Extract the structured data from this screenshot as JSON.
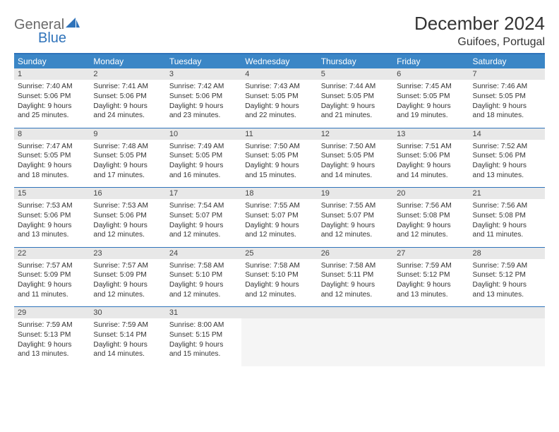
{
  "brand": {
    "part1": "General",
    "part2": "Blue"
  },
  "title": "December 2024",
  "location": "Guifoes, Portugal",
  "colors": {
    "header_bg": "#3b86c6",
    "header_text": "#ffffff",
    "border_accent": "#2f73ba",
    "daynum_bg": "#e8e8e8",
    "body_text": "#333333",
    "logo_gray": "#6a6a6a",
    "logo_blue": "#2f73ba"
  },
  "weekdays": [
    "Sunday",
    "Monday",
    "Tuesday",
    "Wednesday",
    "Thursday",
    "Friday",
    "Saturday"
  ],
  "weeks": [
    [
      {
        "num": "1",
        "sunrise": "Sunrise: 7:40 AM",
        "sunset": "Sunset: 5:06 PM",
        "day1": "Daylight: 9 hours",
        "day2": "and 25 minutes."
      },
      {
        "num": "2",
        "sunrise": "Sunrise: 7:41 AM",
        "sunset": "Sunset: 5:06 PM",
        "day1": "Daylight: 9 hours",
        "day2": "and 24 minutes."
      },
      {
        "num": "3",
        "sunrise": "Sunrise: 7:42 AM",
        "sunset": "Sunset: 5:06 PM",
        "day1": "Daylight: 9 hours",
        "day2": "and 23 minutes."
      },
      {
        "num": "4",
        "sunrise": "Sunrise: 7:43 AM",
        "sunset": "Sunset: 5:05 PM",
        "day1": "Daylight: 9 hours",
        "day2": "and 22 minutes."
      },
      {
        "num": "5",
        "sunrise": "Sunrise: 7:44 AM",
        "sunset": "Sunset: 5:05 PM",
        "day1": "Daylight: 9 hours",
        "day2": "and 21 minutes."
      },
      {
        "num": "6",
        "sunrise": "Sunrise: 7:45 AM",
        "sunset": "Sunset: 5:05 PM",
        "day1": "Daylight: 9 hours",
        "day2": "and 19 minutes."
      },
      {
        "num": "7",
        "sunrise": "Sunrise: 7:46 AM",
        "sunset": "Sunset: 5:05 PM",
        "day1": "Daylight: 9 hours",
        "day2": "and 18 minutes."
      }
    ],
    [
      {
        "num": "8",
        "sunrise": "Sunrise: 7:47 AM",
        "sunset": "Sunset: 5:05 PM",
        "day1": "Daylight: 9 hours",
        "day2": "and 18 minutes."
      },
      {
        "num": "9",
        "sunrise": "Sunrise: 7:48 AM",
        "sunset": "Sunset: 5:05 PM",
        "day1": "Daylight: 9 hours",
        "day2": "and 17 minutes."
      },
      {
        "num": "10",
        "sunrise": "Sunrise: 7:49 AM",
        "sunset": "Sunset: 5:05 PM",
        "day1": "Daylight: 9 hours",
        "day2": "and 16 minutes."
      },
      {
        "num": "11",
        "sunrise": "Sunrise: 7:50 AM",
        "sunset": "Sunset: 5:05 PM",
        "day1": "Daylight: 9 hours",
        "day2": "and 15 minutes."
      },
      {
        "num": "12",
        "sunrise": "Sunrise: 7:50 AM",
        "sunset": "Sunset: 5:05 PM",
        "day1": "Daylight: 9 hours",
        "day2": "and 14 minutes."
      },
      {
        "num": "13",
        "sunrise": "Sunrise: 7:51 AM",
        "sunset": "Sunset: 5:06 PM",
        "day1": "Daylight: 9 hours",
        "day2": "and 14 minutes."
      },
      {
        "num": "14",
        "sunrise": "Sunrise: 7:52 AM",
        "sunset": "Sunset: 5:06 PM",
        "day1": "Daylight: 9 hours",
        "day2": "and 13 minutes."
      }
    ],
    [
      {
        "num": "15",
        "sunrise": "Sunrise: 7:53 AM",
        "sunset": "Sunset: 5:06 PM",
        "day1": "Daylight: 9 hours",
        "day2": "and 13 minutes."
      },
      {
        "num": "16",
        "sunrise": "Sunrise: 7:53 AM",
        "sunset": "Sunset: 5:06 PM",
        "day1": "Daylight: 9 hours",
        "day2": "and 12 minutes."
      },
      {
        "num": "17",
        "sunrise": "Sunrise: 7:54 AM",
        "sunset": "Sunset: 5:07 PM",
        "day1": "Daylight: 9 hours",
        "day2": "and 12 minutes."
      },
      {
        "num": "18",
        "sunrise": "Sunrise: 7:55 AM",
        "sunset": "Sunset: 5:07 PM",
        "day1": "Daylight: 9 hours",
        "day2": "and 12 minutes."
      },
      {
        "num": "19",
        "sunrise": "Sunrise: 7:55 AM",
        "sunset": "Sunset: 5:07 PM",
        "day1": "Daylight: 9 hours",
        "day2": "and 12 minutes."
      },
      {
        "num": "20",
        "sunrise": "Sunrise: 7:56 AM",
        "sunset": "Sunset: 5:08 PM",
        "day1": "Daylight: 9 hours",
        "day2": "and 12 minutes."
      },
      {
        "num": "21",
        "sunrise": "Sunrise: 7:56 AM",
        "sunset": "Sunset: 5:08 PM",
        "day1": "Daylight: 9 hours",
        "day2": "and 11 minutes."
      }
    ],
    [
      {
        "num": "22",
        "sunrise": "Sunrise: 7:57 AM",
        "sunset": "Sunset: 5:09 PM",
        "day1": "Daylight: 9 hours",
        "day2": "and 11 minutes."
      },
      {
        "num": "23",
        "sunrise": "Sunrise: 7:57 AM",
        "sunset": "Sunset: 5:09 PM",
        "day1": "Daylight: 9 hours",
        "day2": "and 12 minutes."
      },
      {
        "num": "24",
        "sunrise": "Sunrise: 7:58 AM",
        "sunset": "Sunset: 5:10 PM",
        "day1": "Daylight: 9 hours",
        "day2": "and 12 minutes."
      },
      {
        "num": "25",
        "sunrise": "Sunrise: 7:58 AM",
        "sunset": "Sunset: 5:10 PM",
        "day1": "Daylight: 9 hours",
        "day2": "and 12 minutes."
      },
      {
        "num": "26",
        "sunrise": "Sunrise: 7:58 AM",
        "sunset": "Sunset: 5:11 PM",
        "day1": "Daylight: 9 hours",
        "day2": "and 12 minutes."
      },
      {
        "num": "27",
        "sunrise": "Sunrise: 7:59 AM",
        "sunset": "Sunset: 5:12 PM",
        "day1": "Daylight: 9 hours",
        "day2": "and 13 minutes."
      },
      {
        "num": "28",
        "sunrise": "Sunrise: 7:59 AM",
        "sunset": "Sunset: 5:12 PM",
        "day1": "Daylight: 9 hours",
        "day2": "and 13 minutes."
      }
    ],
    [
      {
        "num": "29",
        "sunrise": "Sunrise: 7:59 AM",
        "sunset": "Sunset: 5:13 PM",
        "day1": "Daylight: 9 hours",
        "day2": "and 13 minutes."
      },
      {
        "num": "30",
        "sunrise": "Sunrise: 7:59 AM",
        "sunset": "Sunset: 5:14 PM",
        "day1": "Daylight: 9 hours",
        "day2": "and 14 minutes."
      },
      {
        "num": "31",
        "sunrise": "Sunrise: 8:00 AM",
        "sunset": "Sunset: 5:15 PM",
        "day1": "Daylight: 9 hours",
        "day2": "and 15 minutes."
      },
      null,
      null,
      null,
      null
    ]
  ]
}
